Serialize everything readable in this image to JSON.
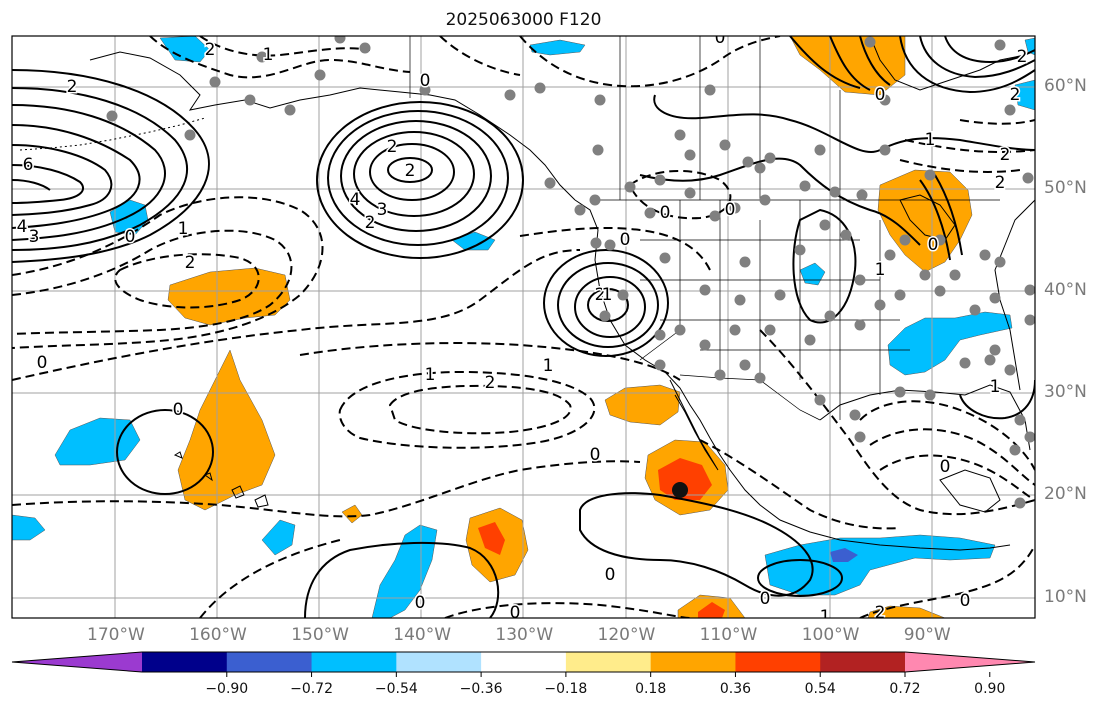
{
  "title": "2025063000 F120",
  "lat_labels": [
    {
      "deg": 60,
      "text": "60°N"
    },
    {
      "deg": 50,
      "text": "50°N"
    },
    {
      "deg": 40,
      "text": "40°N"
    },
    {
      "deg": 30,
      "text": "30°N"
    },
    {
      "deg": 20,
      "text": "20°N"
    },
    {
      "deg": 10,
      "text": "10°N"
    }
  ],
  "lon_labels": [
    {
      "deg": -170,
      "text": "170°W"
    },
    {
      "deg": -160,
      "text": "160°W"
    },
    {
      "deg": -150,
      "text": "150°W"
    },
    {
      "deg": -140,
      "text": "140°W"
    },
    {
      "deg": -130,
      "text": "130°W"
    },
    {
      "deg": -120,
      "text": "120°W"
    },
    {
      "deg": -110,
      "text": "110°W"
    },
    {
      "deg": -100,
      "text": "100°W"
    },
    {
      "deg": -90,
      "text": "90°W"
    }
  ],
  "colorbar": {
    "colors": [
      "#9b3ad0",
      "#00008b",
      "#3b5fd0",
      "#00bfff",
      "#b0e2ff",
      "#ffffff",
      "#ffec8b",
      "#ffa500",
      "#ff4000",
      "#b22222",
      "#ff88b0"
    ],
    "tick_labels": [
      "−0.90",
      "−0.72",
      "−0.54",
      "−0.36",
      "−0.18",
      "0.18",
      "0.36",
      "0.54",
      "0.72",
      "0.90"
    ]
  },
  "contour_labels": [
    "2",
    "6",
    "4",
    "3",
    "0",
    "1",
    "2",
    "0",
    "2",
    "2",
    "3",
    "4",
    "2",
    "2",
    "1",
    "0",
    "0",
    "1",
    "2",
    "2",
    "2",
    "2",
    "2",
    "1",
    "0",
    "0",
    "0",
    "0",
    "1",
    "0",
    "0",
    "1",
    "2",
    "1",
    "0",
    "0",
    "0",
    "0",
    "0",
    "1",
    "0",
    "2",
    "0",
    "1"
  ],
  "icon_names": {
    "station": "station-dot-icon",
    "focus": "focus-point-icon"
  },
  "colors": {
    "contour": "#000000",
    "grid": "#a0a0a0",
    "land": "#000000"
  }
}
